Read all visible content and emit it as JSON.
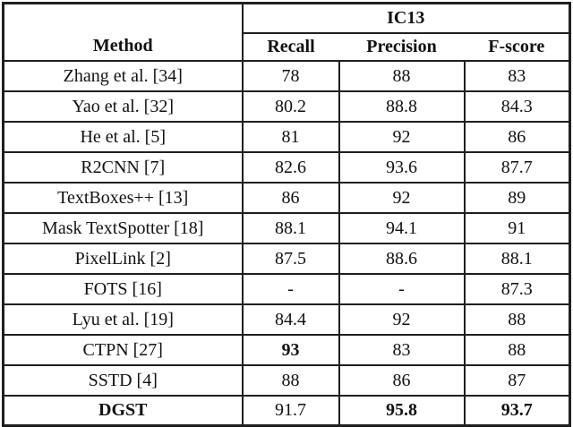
{
  "table": {
    "method_header": "Method",
    "group_header": "IC13",
    "columns": [
      "Recall",
      "Precision",
      "F-score"
    ],
    "rows": [
      {
        "method": "Zhang et al. [34]",
        "recall": "78",
        "precision": "88",
        "fscore": "83",
        "bold": []
      },
      {
        "method": "Yao et al. [32]",
        "recall": "80.2",
        "precision": "88.8",
        "fscore": "84.3",
        "bold": []
      },
      {
        "method": "He et al. [5]",
        "recall": "81",
        "precision": "92",
        "fscore": "86",
        "bold": []
      },
      {
        "method": "R2CNN  [7]",
        "recall": "82.6",
        "precision": "93.6",
        "fscore": "87.7",
        "bold": []
      },
      {
        "method": "TextBoxes++ [13]",
        "recall": "86",
        "precision": "92",
        "fscore": "89",
        "bold": []
      },
      {
        "method": "Mask TextSpotter [18]",
        "recall": "88.1",
        "precision": "94.1",
        "fscore": "91",
        "bold": []
      },
      {
        "method": "PixelLink [2]",
        "recall": "87.5",
        "precision": "88.6",
        "fscore": "88.1",
        "bold": []
      },
      {
        "method": "FOTS [16]",
        "recall": "-",
        "precision": "-",
        "fscore": "87.3",
        "bold": []
      },
      {
        "method": "Lyu et al. [19]",
        "recall": "84.4",
        "precision": "92",
        "fscore": "88",
        "bold": []
      },
      {
        "method": "CTPN [27]",
        "recall": "93",
        "precision": "83",
        "fscore": "88",
        "bold": [
          "recall"
        ]
      },
      {
        "method": "SSTD  [4]",
        "recall": "88",
        "precision": "86",
        "fscore": "87",
        "bold": []
      },
      {
        "method": "DGST",
        "recall": "91.7",
        "precision": "95.8",
        "fscore": "93.7",
        "bold": [
          "method",
          "precision",
          "fscore"
        ]
      }
    ]
  }
}
